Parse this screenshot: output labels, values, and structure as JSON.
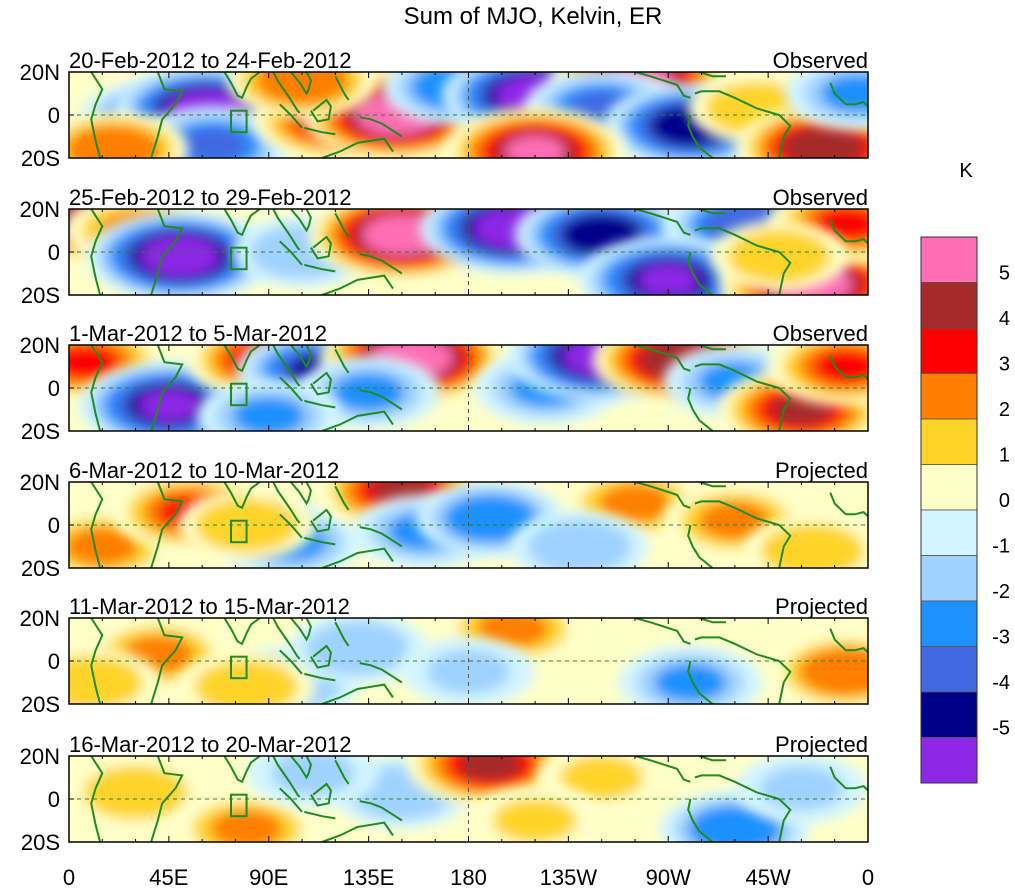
{
  "figure": {
    "title": "Sum of MJO, Kelvin, ER",
    "lat_ticks": [
      "20N",
      "0",
      "20S"
    ],
    "lon_ticks": [
      "0",
      "45E",
      "90E",
      "135E",
      "180",
      "135W",
      "90W",
      "45W",
      "0"
    ],
    "colorbar_unit": "K"
  },
  "chart_data": {
    "type": "heatmap",
    "title": "Sum of MJO, Kelvin, ER",
    "xlim": [
      0,
      360
    ],
    "ylim": [
      -20,
      20
    ],
    "grid": false,
    "legend_placement": "right",
    "colorbar": {
      "unit": "K",
      "tick_labels": [
        "5",
        "4",
        "3",
        "2",
        "1",
        "0",
        "-1",
        "-2",
        "-3",
        "-4",
        "-5"
      ],
      "colors": [
        "#ff6eb4",
        "#a52a2a",
        "#ff0000",
        "#ff7f00",
        "#ffd42a",
        "#ffffc8",
        "#d2f5ff",
        "#a0d2ff",
        "#1e90ff",
        "#4169e1",
        "#00008b",
        "#8c28e6"
      ]
    },
    "coast_color": "#1e8c1e",
    "panels": [
      {
        "period": "20-Feb-2012 to 24-Feb-2012",
        "status": "Observed",
        "anomalies": [
          {
            "lon": 40,
            "lat": -3,
            "value": -3.5
          },
          {
            "lon": 62,
            "lat": 2,
            "value": -5.5
          },
          {
            "lon": 65,
            "lat": -14,
            "value": -3.0
          },
          {
            "lon": 120,
            "lat": -2,
            "value": 3.8
          },
          {
            "lon": 147,
            "lat": 0,
            "value": 5.5
          },
          {
            "lon": 105,
            "lat": 16,
            "value": 2.5
          },
          {
            "lon": 175,
            "lat": 13,
            "value": -2.5
          },
          {
            "lon": 210,
            "lat": 9,
            "value": -5.5
          },
          {
            "lon": 258,
            "lat": 16,
            "value": 5.0
          },
          {
            "lon": 240,
            "lat": 3,
            "value": -3.0
          },
          {
            "lon": 280,
            "lat": -5,
            "value": -4.5
          },
          {
            "lon": 310,
            "lat": 3,
            "value": 1.5
          },
          {
            "lon": 340,
            "lat": -15,
            "value": 4.5
          },
          {
            "lon": 210,
            "lat": -17,
            "value": 5.0
          },
          {
            "lon": 355,
            "lat": 10,
            "value": -2.0
          },
          {
            "lon": 20,
            "lat": -16,
            "value": 2.5
          }
        ]
      },
      {
        "period": "25-Feb-2012 to 29-Feb-2012",
        "status": "Observed",
        "anomalies": [
          {
            "lon": 5,
            "lat": 15,
            "value": 4.0
          },
          {
            "lon": 30,
            "lat": 10,
            "value": 2.0
          },
          {
            "lon": 50,
            "lat": -2,
            "value": -5.5
          },
          {
            "lon": 105,
            "lat": 0,
            "value": -1.5
          },
          {
            "lon": 150,
            "lat": 8,
            "value": 5.5
          },
          {
            "lon": 200,
            "lat": 11,
            "value": -5.5
          },
          {
            "lon": 240,
            "lat": 8,
            "value": -4.5
          },
          {
            "lon": 305,
            "lat": 12,
            "value": -3.5
          },
          {
            "lon": 270,
            "lat": -13,
            "value": -5.0
          },
          {
            "lon": 335,
            "lat": -15,
            "value": 5.5
          },
          {
            "lon": 350,
            "lat": 13,
            "value": 3.0
          },
          {
            "lon": 320,
            "lat": -2,
            "value": 1.5
          }
        ]
      },
      {
        "period": "1-Mar-2012 to 5-Mar-2012",
        "status": "Observed",
        "anomalies": [
          {
            "lon": 8,
            "lat": 12,
            "value": 3.0
          },
          {
            "lon": 45,
            "lat": -8,
            "value": -5.0
          },
          {
            "lon": 90,
            "lat": 13,
            "value": 3.5
          },
          {
            "lon": 113,
            "lat": 8,
            "value": -4.0
          },
          {
            "lon": 155,
            "lat": 14,
            "value": 5.5
          },
          {
            "lon": 135,
            "lat": -2,
            "value": -2.0
          },
          {
            "lon": 215,
            "lat": 0,
            "value": -2.0
          },
          {
            "lon": 240,
            "lat": 15,
            "value": -5.5
          },
          {
            "lon": 275,
            "lat": 13,
            "value": 4.5
          },
          {
            "lon": 300,
            "lat": 3,
            "value": -2.0
          },
          {
            "lon": 330,
            "lat": -10,
            "value": 4.0
          },
          {
            "lon": 350,
            "lat": 10,
            "value": 3.0
          },
          {
            "lon": 90,
            "lat": -13,
            "value": -2.0
          }
        ]
      },
      {
        "period": "6-Mar-2012 to 10-Mar-2012",
        "status": "Projected",
        "anomalies": [
          {
            "lon": 15,
            "lat": -10,
            "value": 2.0
          },
          {
            "lon": 55,
            "lat": 6,
            "value": 3.0
          },
          {
            "lon": 100,
            "lat": -8,
            "value": -2.0
          },
          {
            "lon": 150,
            "lat": 16,
            "value": 4.0
          },
          {
            "lon": 160,
            "lat": -3,
            "value": -2.0
          },
          {
            "lon": 190,
            "lat": 3,
            "value": -2.5
          },
          {
            "lon": 255,
            "lat": 10,
            "value": 2.0
          },
          {
            "lon": 300,
            "lat": 2,
            "value": 2.0
          },
          {
            "lon": 335,
            "lat": -12,
            "value": 1.5
          },
          {
            "lon": 230,
            "lat": -10,
            "value": -1.5
          },
          {
            "lon": 80,
            "lat": 0,
            "value": 1.5
          }
        ]
      },
      {
        "period": "11-Mar-2012 to 15-Mar-2012",
        "status": "Projected",
        "anomalies": [
          {
            "lon": 40,
            "lat": 3,
            "value": 2.0
          },
          {
            "lon": 10,
            "lat": -10,
            "value": 1.5
          },
          {
            "lon": 100,
            "lat": -10,
            "value": -1.5
          },
          {
            "lon": 130,
            "lat": 6,
            "value": -1.5
          },
          {
            "lon": 200,
            "lat": 15,
            "value": 2.0
          },
          {
            "lon": 180,
            "lat": -5,
            "value": -1.0
          },
          {
            "lon": 280,
            "lat": -10,
            "value": -2.0
          },
          {
            "lon": 350,
            "lat": -5,
            "value": 2.5
          },
          {
            "lon": 80,
            "lat": -12,
            "value": 1.5
          }
        ]
      },
      {
        "period": "16-Mar-2012 to 20-Mar-2012",
        "status": "Projected",
        "anomalies": [
          {
            "lon": 30,
            "lat": 3,
            "value": 1.5
          },
          {
            "lon": 80,
            "lat": -14,
            "value": 2.0
          },
          {
            "lon": 150,
            "lat": 3,
            "value": -1.5
          },
          {
            "lon": 190,
            "lat": 16,
            "value": 4.0
          },
          {
            "lon": 240,
            "lat": 10,
            "value": 1.0
          },
          {
            "lon": 300,
            "lat": -14,
            "value": -2.5
          },
          {
            "lon": 330,
            "lat": 5,
            "value": -1.0
          },
          {
            "lon": 110,
            "lat": 12,
            "value": -1.0
          },
          {
            "lon": 210,
            "lat": -10,
            "value": 1.0
          }
        ]
      }
    ]
  }
}
